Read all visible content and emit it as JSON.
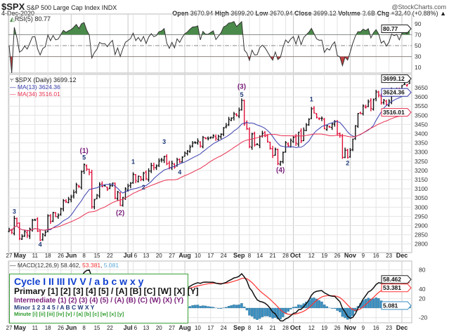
{
  "header": {
    "symbol": "$SPX",
    "name": "S&P 500 Large Cap Index",
    "exchange": "INDX",
    "watermark": "@StockCharts.com",
    "date": "4-Dec-2020",
    "open_label": "Open",
    "open": "3670.94",
    "high_label": "High",
    "high": "3699.20",
    "low_label": "Low",
    "low": "3670.94",
    "close_label": "Close",
    "close": "3699.12",
    "volume_label": "Volume",
    "volume": "2.6B",
    "chg_label": "Chg",
    "chg": "+32.40 (+0.88%)",
    "chg_arrow": "▲"
  },
  "legend_box": {
    "cycle": "Cycle I II III IV V / a b c w x y",
    "primary": "Primary [1] [2] [3] [4] [5] / [A] [B] [C] [W] [X] [Y]",
    "intermediate": "Intermediate (1) (2) (3) (4) (5) / (A) (B) (C) (W) (X) (Y)",
    "minor": "Minor 1 2 3 4 5 / A B C W X Y",
    "minute": "Minute [i] [ii] [iii] [iv] [v] / [a] [b] [c] [w] [x] [y]"
  },
  "colors": {
    "up_bar": "#111111",
    "down_bar": "#e0103a",
    "ma13": "#3b3fb0",
    "ma34": "#e83050",
    "rsi_fill_high": "#4a8a4a",
    "rsi_fill_low": "#c04040",
    "macd": "#111111",
    "signal": "#ff3333",
    "histogram": "#3a8fc0",
    "wave_minor": "#1f3a7a",
    "wave_intermediate": "#7a1f7a",
    "legend_border": "#3aa13a",
    "legend_cycle": "#1040d0",
    "legend_primary": "#111111",
    "legend_intermediate": "#7a1f7a",
    "legend_minor": "#1f3a7a",
    "legend_minute": "#2a9a2a"
  },
  "chart_data": {
    "type": "ohlc-bar",
    "title": "$SPX (Daily)",
    "last_value": "3699.12",
    "x_range": [
      "2020-04-27",
      "2020-12-04"
    ],
    "y_range": [
      2775,
      3720
    ],
    "grid": true,
    "close": [
      2878,
      2863,
      2939,
      2912,
      2830,
      2842,
      2868,
      2848,
      2881,
      2929,
      2930,
      2870,
      2820,
      2852,
      2863,
      2953,
      2922,
      2971,
      2949,
      2955,
      2991,
      3036,
      3029,
      3044,
      3055,
      3080,
      3122,
      3112,
      3193,
      3232,
      3207,
      3190,
      3002,
      3041,
      3066,
      3124,
      3113,
      3115,
      3098,
      3117,
      3131,
      3050,
      3083,
      3009,
      3053,
      3100,
      3115,
      3130,
      3179,
      3145,
      3169,
      3152,
      3185,
      3155,
      3197,
      3227,
      3216,
      3224,
      3251,
      3257,
      3276,
      3236,
      3215,
      3239,
      3218,
      3258,
      3246,
      3271,
      3294,
      3306,
      3327,
      3349,
      3351,
      3360,
      3333,
      3380,
      3373,
      3373,
      3381,
      3389,
      3375,
      3385,
      3397,
      3431,
      3443,
      3478,
      3484,
      3508,
      3500,
      3527,
      3580,
      3455,
      3427,
      3331,
      3398,
      3339,
      3341,
      3384,
      3401,
      3385,
      3357,
      3320,
      3281,
      3315,
      3237,
      3247,
      3298,
      3351,
      3335,
      3363,
      3380,
      3348,
      3408,
      3361,
      3419,
      3447,
      3477,
      3535,
      3512,
      3489,
      3483,
      3484,
      3427,
      3443,
      3435,
      3453,
      3465,
      3401,
      3391,
      3271,
      3310,
      3270,
      3310,
      3370,
      3443,
      3510,
      3509,
      3551,
      3545,
      3573,
      3537,
      3585,
      3627,
      3610,
      3568,
      3582,
      3558,
      3578,
      3635,
      3629,
      3638,
      3622,
      3662,
      3669,
      3666,
      3699
    ],
    "y_ticks": [
      3650,
      3600,
      3550,
      3500,
      3450,
      3400,
      3350,
      3300,
      3250,
      3200,
      3150,
      3100,
      3050,
      3000,
      2950,
      2900,
      2850,
      2800
    ],
    "overlays": [
      {
        "name": "MA(13)",
        "value": "3624.36",
        "period": 13
      },
      {
        "name": "MA(34)",
        "value": "3516.01",
        "period": 34
      }
    ],
    "x_ticks": [
      {
        "label": "27",
        "date": "2020-04-27",
        "bold": false
      },
      {
        "label": "May",
        "date": "2020-05-01",
        "bold": true
      },
      {
        "label": "11",
        "date": "2020-05-11",
        "bold": false
      },
      {
        "label": "18",
        "date": "2020-05-18",
        "bold": false
      },
      {
        "label": "26",
        "date": "2020-05-26",
        "bold": false
      },
      {
        "label": "Jun",
        "date": "2020-06-01",
        "bold": true
      },
      {
        "label": "8",
        "date": "2020-06-08",
        "bold": false
      },
      {
        "label": "15",
        "date": "2020-06-15",
        "bold": false
      },
      {
        "label": "22",
        "date": "2020-06-22",
        "bold": false
      },
      {
        "label": "Jul",
        "date": "2020-07-01",
        "bold": true
      },
      {
        "label": "6",
        "date": "2020-07-06",
        "bold": false
      },
      {
        "label": "13",
        "date": "2020-07-13",
        "bold": false
      },
      {
        "label": "20",
        "date": "2020-07-20",
        "bold": false
      },
      {
        "label": "27",
        "date": "2020-07-27",
        "bold": false
      },
      {
        "label": "Aug",
        "date": "2020-08-03",
        "bold": true
      },
      {
        "label": "10",
        "date": "2020-08-10",
        "bold": false
      },
      {
        "label": "17",
        "date": "2020-08-17",
        "bold": false
      },
      {
        "label": "24",
        "date": "2020-08-24",
        "bold": false
      },
      {
        "label": "Sep",
        "date": "2020-09-01",
        "bold": true
      },
      {
        "label": "8",
        "date": "2020-09-08",
        "bold": false
      },
      {
        "label": "14",
        "date": "2020-09-14",
        "bold": false
      },
      {
        "label": "21",
        "date": "2020-09-21",
        "bold": false
      },
      {
        "label": "28",
        "date": "2020-09-28",
        "bold": false
      },
      {
        "label": "Oct",
        "date": "2020-10-01",
        "bold": true
      },
      {
        "label": "12",
        "date": "2020-10-12",
        "bold": false
      },
      {
        "label": "19",
        "date": "2020-10-19",
        "bold": false
      },
      {
        "label": "26",
        "date": "2020-10-26",
        "bold": false
      },
      {
        "label": "Nov",
        "date": "2020-11-02",
        "bold": true
      },
      {
        "label": "9",
        "date": "2020-11-09",
        "bold": false
      },
      {
        "label": "16",
        "date": "2020-11-16",
        "bold": false
      },
      {
        "label": "23",
        "date": "2020-11-23",
        "bold": false
      },
      {
        "label": "Dec",
        "date": "2020-12-01",
        "bold": true
      }
    ],
    "wave_labels": [
      {
        "text": "3",
        "degree": "minor",
        "date": "2020-04-29",
        "price": 2965
      },
      {
        "text": "4",
        "degree": "minor",
        "date": "2020-05-13",
        "price": 2785
      },
      {
        "text": "(1)",
        "degree": "intermediate",
        "date": "2020-06-08",
        "price": 3295
      },
      {
        "text": "5",
        "degree": "minor",
        "date": "2020-06-08",
        "price": 3258
      },
      {
        "text": "(2)",
        "degree": "intermediate",
        "date": "2020-06-26",
        "price": 2958
      },
      {
        "text": "1",
        "degree": "minor",
        "date": "2020-07-06",
        "price": 3236
      },
      {
        "text": "2",
        "degree": "minor",
        "date": "2020-07-10",
        "price": 3097
      },
      {
        "text": "3",
        "degree": "minor",
        "date": "2020-07-22",
        "price": 3345
      },
      {
        "text": "4",
        "degree": "minor",
        "date": "2020-07-30",
        "price": 3178
      },
      {
        "text": "(3)",
        "degree": "intermediate",
        "date": "2020-09-02",
        "price": 3645
      },
      {
        "text": "5",
        "degree": "minor",
        "date": "2020-09-02",
        "price": 3600
      },
      {
        "text": "(4)",
        "degree": "intermediate",
        "date": "2020-09-24",
        "price": 3190
      },
      {
        "text": "1",
        "degree": "minor",
        "date": "2020-10-12",
        "price": 3575
      },
      {
        "text": "2",
        "degree": "minor",
        "date": "2020-10-30",
        "price": 3228
      }
    ],
    "rsi": {
      "name": "RSI(5)",
      "value": "80.77",
      "period": 5,
      "ticks": [
        90,
        70,
        50,
        30,
        10
      ],
      "range": [
        0,
        100
      ],
      "overbought": 70,
      "oversold": 30
    },
    "macd": {
      "name": "MACD(12,26,9)",
      "macd_value": "58.462",
      "signal_value": "53.381",
      "histogram_value": "5.081",
      "ticks": [
        80,
        40,
        20,
        -20
      ],
      "range": [
        -35,
        90
      ]
    }
  }
}
